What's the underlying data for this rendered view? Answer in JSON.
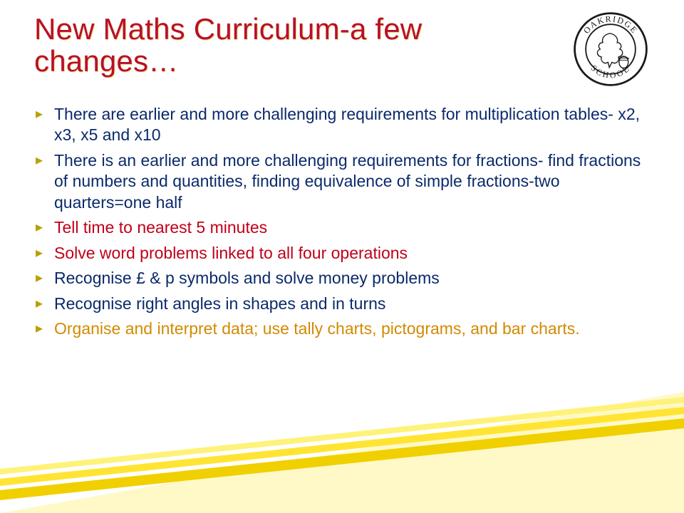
{
  "slide": {
    "title": "New Maths Curriculum-a few changes…",
    "title_color": "#b90e2e",
    "title_shadow": "#f0e078",
    "title_fontsize": 42,
    "background_color": "#ffffff",
    "bullet_marker_color": "#b8a000",
    "bullets": [
      {
        "text": "There are earlier and more challenging requirements for multiplication tables- x2, x3, x5 and x10",
        "color": "#0a2a6b"
      },
      {
        "text": "There is an earlier and more challenging requirements for fractions- find fractions of numbers and quantities, finding equivalence of simple fractions-two quarters=one half",
        "color": "#0a2a6b"
      },
      {
        "text": "Tell time to nearest 5 minutes",
        "color": "#c00018"
      },
      {
        "text": "Solve word problems linked to all four operations",
        "color": "#c00018"
      },
      {
        "text": "Recognise £ & p symbols and solve money problems",
        "color": "#0a2a6b"
      },
      {
        "text": "Recognise right angles in shapes and in turns",
        "color": "#0a2a6b"
      },
      {
        "text": "Organise and interpret data; use tally charts, pictograms, and bar charts.",
        "color": "#d28a00"
      }
    ],
    "bullet_fontsize": 23,
    "logo": {
      "ring_text_top": "OAKRIDGE",
      "ring_text_bottom": "SCHOOL",
      "stroke": "#1a1a1a",
      "fill": "#ffffff"
    },
    "decor": {
      "bar_colors": [
        "#fff27a",
        "#ffe433",
        "#f0d000"
      ],
      "triangle_fill": "#fff9c8"
    }
  }
}
